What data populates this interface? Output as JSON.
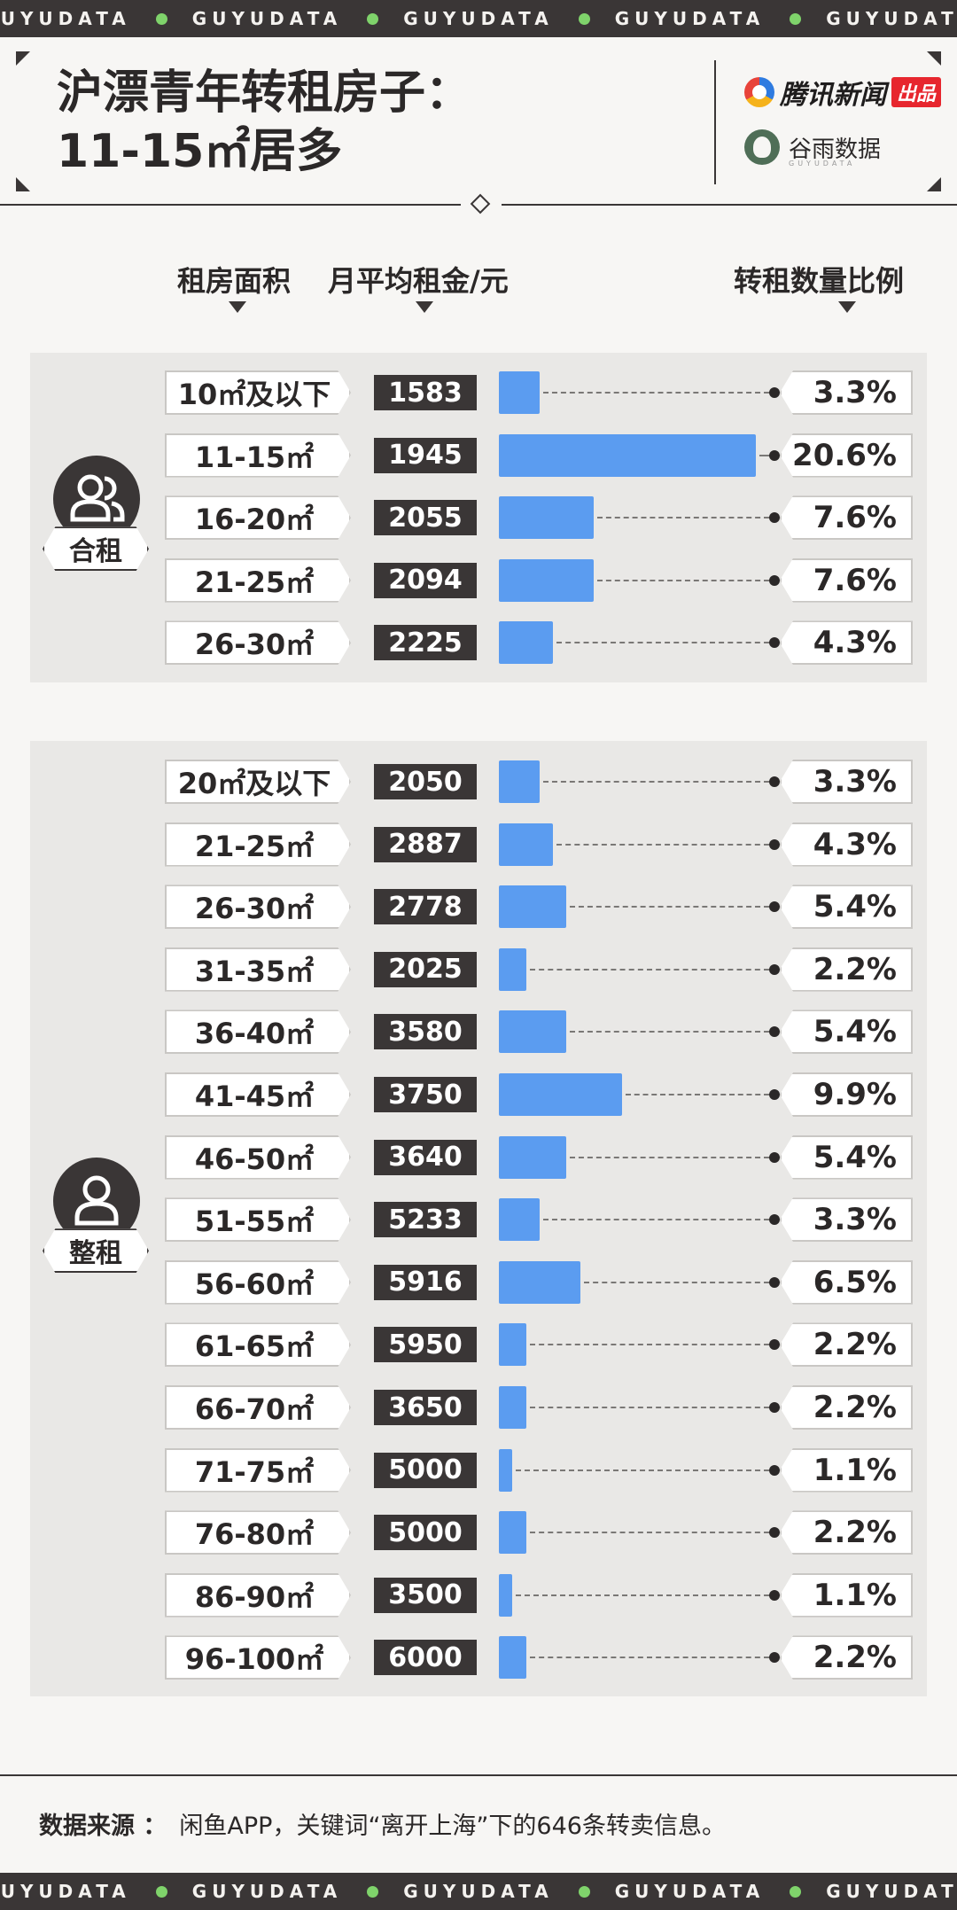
{
  "ticker": {
    "items": [
      "GUYUDATA",
      "GUYUDATA",
      "GUYUDATA",
      "GUYUDATA",
      "GUYUDATA"
    ]
  },
  "header": {
    "title_line1": "沪漂青年转租房子：",
    "title_line2": "11-15㎡居多",
    "brand1": "腾讯新闻",
    "brand1_tag": "出品",
    "brand2": "谷雨数据",
    "brand2_sub": "GUYUDATA"
  },
  "columns": {
    "area": "租房面积",
    "rent": "月平均租金/元",
    "ratio": "转租数量比例"
  },
  "colors": {
    "bar": "#5b9cf0",
    "dark": "#3a3636",
    "accent_dot": "#7fd36b"
  },
  "chart_data": {
    "type": "bar",
    "groups": [
      {
        "name": "合租",
        "icon": "shared-users-icon",
        "rows": [
          {
            "area": "10㎡及以下",
            "rent": 1583,
            "pct": "3.3%",
            "value": 3.3
          },
          {
            "area": "11-15㎡",
            "rent": 1945,
            "pct": "20.6%",
            "value": 20.6
          },
          {
            "area": "16-20㎡",
            "rent": 2055,
            "pct": "7.6%",
            "value": 7.6
          },
          {
            "area": "21-25㎡",
            "rent": 2094,
            "pct": "7.6%",
            "value": 7.6
          },
          {
            "area": "26-30㎡",
            "rent": 2225,
            "pct": "4.3%",
            "value": 4.3
          }
        ]
      },
      {
        "name": "整租",
        "icon": "single-user-icon",
        "rows": [
          {
            "area": "20㎡及以下",
            "rent": 2050,
            "pct": "3.3%",
            "value": 3.3
          },
          {
            "area": "21-25㎡",
            "rent": 2887,
            "pct": "4.3%",
            "value": 4.3
          },
          {
            "area": "26-30㎡",
            "rent": 2778,
            "pct": "5.4%",
            "value": 5.4
          },
          {
            "area": "31-35㎡",
            "rent": 2025,
            "pct": "2.2%",
            "value": 2.2
          },
          {
            "area": "36-40㎡",
            "rent": 3580,
            "pct": "5.4%",
            "value": 5.4
          },
          {
            "area": "41-45㎡",
            "rent": 3750,
            "pct": "9.9%",
            "value": 9.9
          },
          {
            "area": "46-50㎡",
            "rent": 3640,
            "pct": "5.4%",
            "value": 5.4
          },
          {
            "area": "51-55㎡",
            "rent": 5233,
            "pct": "3.3%",
            "value": 3.3
          },
          {
            "area": "56-60㎡",
            "rent": 5916,
            "pct": "6.5%",
            "value": 6.5
          },
          {
            "area": "61-65㎡",
            "rent": 5950,
            "pct": "2.2%",
            "value": 2.2
          },
          {
            "area": "66-70㎡",
            "rent": 3650,
            "pct": "2.2%",
            "value": 2.2
          },
          {
            "area": "71-75㎡",
            "rent": 5000,
            "pct": "1.1%",
            "value": 1.1
          },
          {
            "area": "76-80㎡",
            "rent": 5000,
            "pct": "2.2%",
            "value": 2.2
          },
          {
            "area": "86-90㎡",
            "rent": 3500,
            "pct": "1.1%",
            "value": 1.1
          },
          {
            "area": "96-100㎡",
            "rent": 6000,
            "pct": "2.2%",
            "value": 2.2
          }
        ]
      }
    ]
  },
  "footer": {
    "label": "数据来源 ：",
    "text": "闲鱼APP，关键词“离开上海”下的646条转卖信息。"
  }
}
